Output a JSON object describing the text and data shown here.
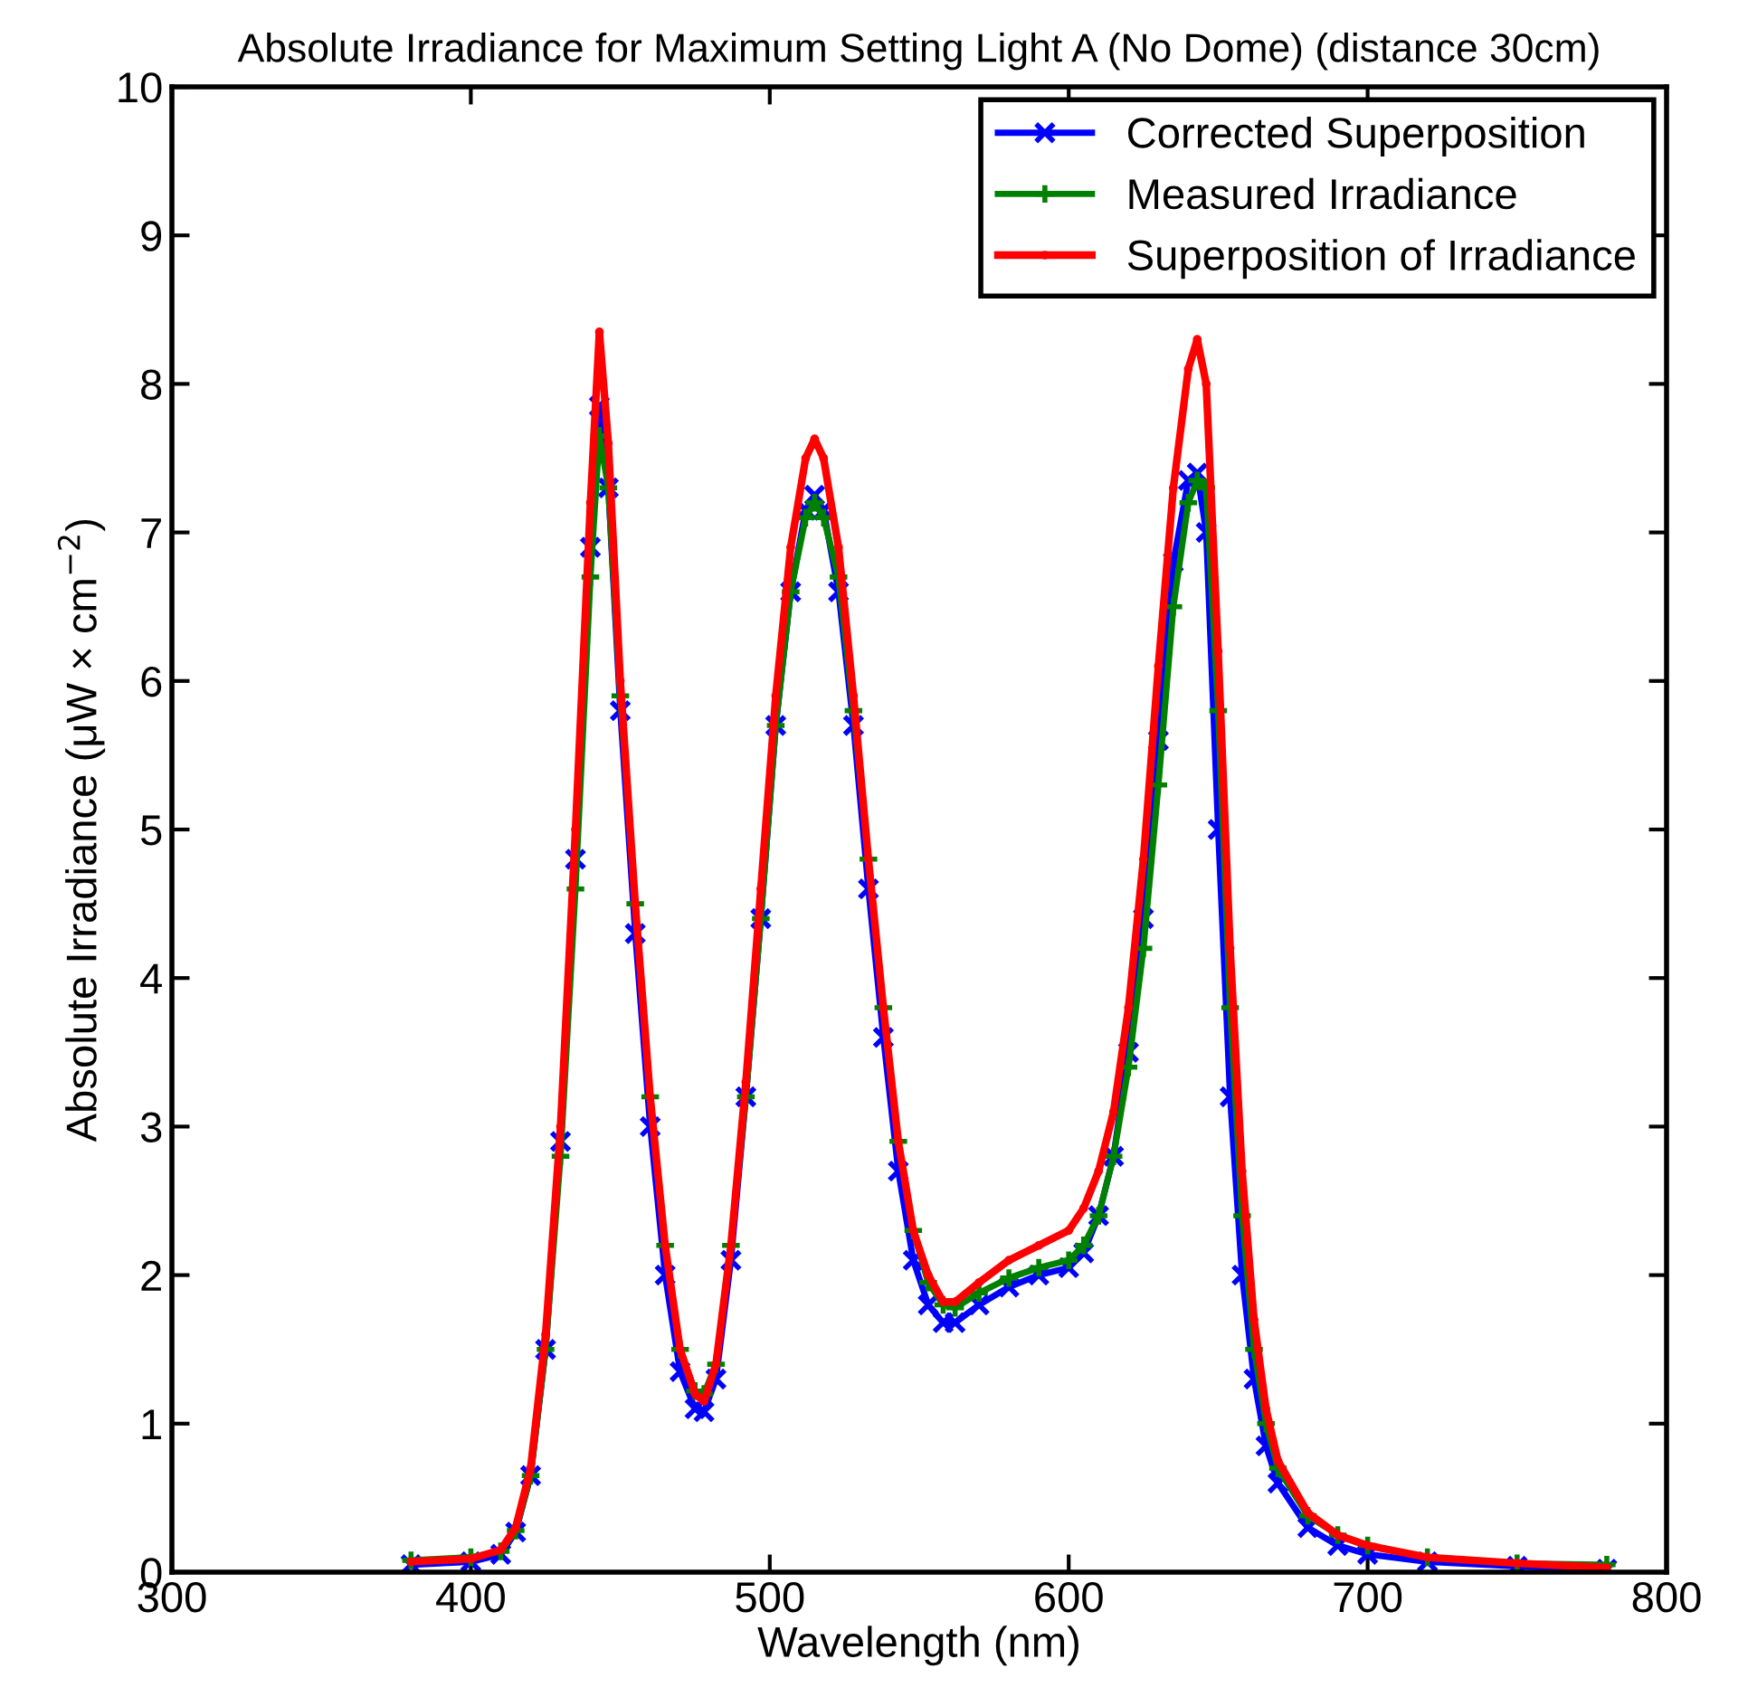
{
  "chart_data": {
    "type": "line",
    "title": "Absolute Irradiance for Maximum Setting Light A (No Dome) (distance 30cm)",
    "xlabel": "Wavelength (nm)",
    "ylabel": "Absolute Irradiance (μW × cm$^{−2}$)",
    "x": [
      380,
      400,
      410,
      415,
      420,
      425,
      430,
      435,
      440,
      443,
      446,
      450,
      455,
      460,
      465,
      470,
      475,
      478,
      482,
      487,
      492,
      497,
      502,
      507,
      512,
      515,
      518,
      523,
      528,
      533,
      538,
      543,
      548,
      553,
      558,
      562,
      570,
      580,
      590,
      600,
      605,
      610,
      615,
      620,
      625,
      630,
      635,
      640,
      643,
      646,
      650,
      654,
      658,
      662,
      666,
      670,
      680,
      690,
      700,
      720,
      750,
      780
    ],
    "series": [
      {
        "name": "Corrected Superposition",
        "color": "#0000ff",
        "marker": "cross",
        "values": [
          0.05,
          0.07,
          0.12,
          0.27,
          0.65,
          1.5,
          2.9,
          4.8,
          6.9,
          7.85,
          7.3,
          5.8,
          4.3,
          3.0,
          2.0,
          1.35,
          1.1,
          1.08,
          1.3,
          2.1,
          3.2,
          4.4,
          5.7,
          6.6,
          7.15,
          7.25,
          7.15,
          6.6,
          5.7,
          4.6,
          3.6,
          2.7,
          2.1,
          1.8,
          1.68,
          1.68,
          1.8,
          1.92,
          2.0,
          2.05,
          2.15,
          2.4,
          2.8,
          3.5,
          4.4,
          5.6,
          6.8,
          7.35,
          7.4,
          7.0,
          5.0,
          3.2,
          2.0,
          1.3,
          0.85,
          0.6,
          0.3,
          0.18,
          0.12,
          0.07,
          0.04,
          0.02
        ]
      },
      {
        "name": "Measured Irradiance",
        "color": "#008000",
        "marker": "plus",
        "values": [
          0.08,
          0.1,
          0.14,
          0.28,
          0.65,
          1.5,
          2.8,
          4.6,
          6.7,
          7.65,
          7.3,
          5.9,
          4.5,
          3.2,
          2.2,
          1.5,
          1.22,
          1.2,
          1.4,
          2.2,
          3.2,
          4.4,
          5.7,
          6.6,
          7.1,
          7.2,
          7.1,
          6.7,
          5.8,
          4.8,
          3.8,
          2.9,
          2.3,
          1.95,
          1.8,
          1.78,
          1.88,
          1.98,
          2.05,
          2.1,
          2.2,
          2.4,
          2.8,
          3.4,
          4.2,
          5.3,
          6.5,
          7.2,
          7.35,
          7.3,
          5.8,
          3.8,
          2.4,
          1.5,
          1.0,
          0.7,
          0.38,
          0.25,
          0.18,
          0.1,
          0.06,
          0.05
        ]
      },
      {
        "name": "Superposition of Irradiance",
        "color": "#ff0000",
        "marker": "circle",
        "values": [
          0.07,
          0.09,
          0.15,
          0.3,
          0.7,
          1.6,
          3.0,
          5.0,
          7.2,
          8.35,
          7.6,
          6.0,
          4.5,
          3.2,
          2.2,
          1.5,
          1.2,
          1.15,
          1.4,
          2.2,
          3.3,
          4.6,
          5.9,
          6.9,
          7.5,
          7.63,
          7.5,
          6.9,
          5.9,
          4.8,
          3.8,
          2.9,
          2.3,
          2.0,
          1.82,
          1.82,
          1.95,
          2.1,
          2.2,
          2.3,
          2.45,
          2.7,
          3.1,
          3.8,
          4.8,
          6.1,
          7.3,
          8.1,
          8.3,
          8.0,
          6.2,
          4.2,
          2.7,
          1.7,
          1.1,
          0.75,
          0.4,
          0.25,
          0.18,
          0.1,
          0.06,
          0.03
        ]
      }
    ],
    "xlim": [
      300,
      800
    ],
    "xticks": [
      300,
      400,
      500,
      600,
      700,
      800
    ],
    "ylim": [
      0,
      10
    ],
    "yticks": [
      0,
      1,
      2,
      3,
      4,
      5,
      6,
      7,
      8,
      9,
      10
    ],
    "grid": false,
    "legend": "top right",
    "line_style": "solid"
  }
}
